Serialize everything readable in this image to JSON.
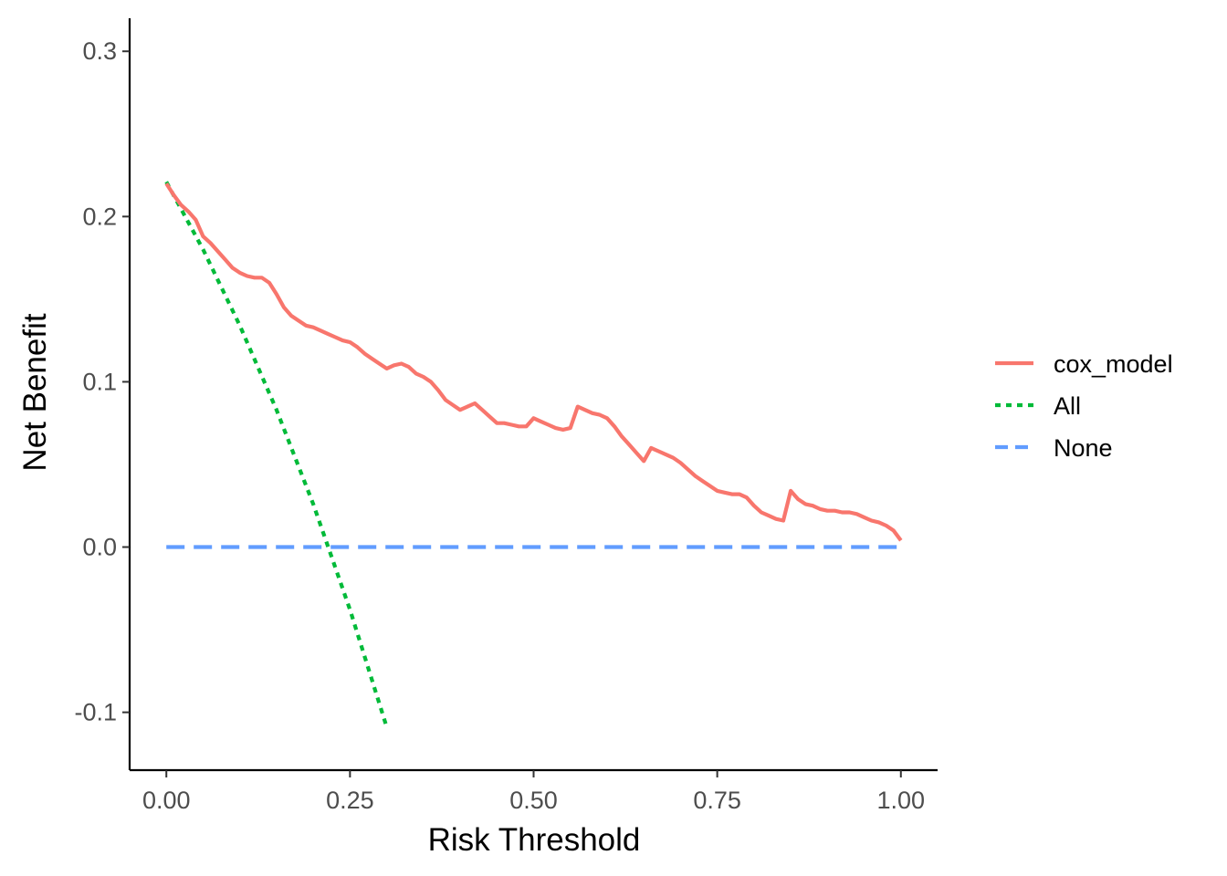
{
  "chart_data": {
    "type": "line",
    "title": "",
    "xlabel": "Risk Threshold",
    "ylabel": "Net Benefit",
    "xlim": [
      -0.05,
      1.05
    ],
    "ylim": [
      -0.135,
      0.32
    ],
    "x_ticks": [
      0.0,
      0.25,
      0.5,
      0.75,
      1.0
    ],
    "x_tick_labels": [
      "0.00",
      "0.25",
      "0.50",
      "0.75",
      "1.00"
    ],
    "y_ticks": [
      -0.1,
      0.0,
      0.1,
      0.2,
      0.3
    ],
    "y_tick_labels": [
      "-0.1",
      "0.0",
      "0.1",
      "0.2",
      "0.3"
    ],
    "grid": false,
    "legend_position": "right",
    "series": [
      {
        "name": "cox_model",
        "color": "#F8766D",
        "style": "solid",
        "x": [
          0.0,
          0.01,
          0.02,
          0.03,
          0.04,
          0.05,
          0.06,
          0.07,
          0.08,
          0.09,
          0.1,
          0.11,
          0.12,
          0.13,
          0.14,
          0.15,
          0.16,
          0.17,
          0.18,
          0.19,
          0.2,
          0.21,
          0.22,
          0.23,
          0.24,
          0.25,
          0.26,
          0.27,
          0.28,
          0.29,
          0.3,
          0.31,
          0.32,
          0.33,
          0.34,
          0.35,
          0.36,
          0.37,
          0.38,
          0.39,
          0.4,
          0.41,
          0.42,
          0.43,
          0.44,
          0.45,
          0.46,
          0.47,
          0.48,
          0.49,
          0.5,
          0.51,
          0.52,
          0.53,
          0.54,
          0.55,
          0.56,
          0.57,
          0.58,
          0.59,
          0.6,
          0.61,
          0.62,
          0.63,
          0.64,
          0.65,
          0.66,
          0.67,
          0.68,
          0.69,
          0.7,
          0.71,
          0.72,
          0.73,
          0.74,
          0.75,
          0.76,
          0.77,
          0.78,
          0.79,
          0.8,
          0.81,
          0.82,
          0.83,
          0.84,
          0.85,
          0.86,
          0.87,
          0.88,
          0.89,
          0.9,
          0.91,
          0.92,
          0.93,
          0.94,
          0.95,
          0.96,
          0.97,
          0.98,
          0.99,
          1.0
        ],
        "y": [
          0.22,
          0.213,
          0.207,
          0.203,
          0.198,
          0.188,
          0.184,
          0.179,
          0.174,
          0.169,
          0.166,
          0.164,
          0.163,
          0.163,
          0.16,
          0.153,
          0.145,
          0.14,
          0.137,
          0.134,
          0.133,
          0.131,
          0.129,
          0.127,
          0.125,
          0.124,
          0.121,
          0.117,
          0.114,
          0.111,
          0.108,
          0.11,
          0.111,
          0.109,
          0.105,
          0.103,
          0.1,
          0.095,
          0.089,
          0.086,
          0.083,
          0.085,
          0.087,
          0.083,
          0.079,
          0.075,
          0.075,
          0.074,
          0.073,
          0.073,
          0.078,
          0.076,
          0.074,
          0.072,
          0.071,
          0.072,
          0.085,
          0.083,
          0.081,
          0.08,
          0.078,
          0.073,
          0.067,
          0.062,
          0.057,
          0.052,
          0.06,
          0.058,
          0.056,
          0.054,
          0.051,
          0.047,
          0.043,
          0.04,
          0.037,
          0.034,
          0.033,
          0.032,
          0.032,
          0.03,
          0.025,
          0.021,
          0.019,
          0.017,
          0.016,
          0.034,
          0.029,
          0.026,
          0.025,
          0.023,
          0.022,
          0.022,
          0.021,
          0.021,
          0.02,
          0.018,
          0.016,
          0.015,
          0.013,
          0.01,
          0.004
        ]
      },
      {
        "name": "All",
        "color": "#00BA38",
        "style": "dotted",
        "x": [
          0.0,
          0.05,
          0.1,
          0.15,
          0.2,
          0.25,
          0.3
        ],
        "y": [
          0.221,
          0.18,
          0.134,
          0.083,
          0.026,
          -0.038,
          -0.109
        ]
      },
      {
        "name": "None",
        "color": "#619CFF",
        "style": "dashed",
        "x": [
          0.0,
          1.0
        ],
        "y": [
          0.0,
          0.0
        ]
      }
    ]
  }
}
